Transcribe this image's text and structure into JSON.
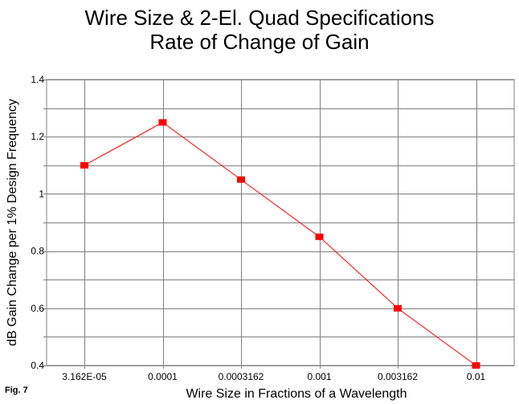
{
  "chart_data": {
    "type": "line",
    "title": "Wire Size & 2-El. Quad Specifications",
    "subtitle": "Rate of Change of Gain",
    "xlabel": "Wire Size in Fractions of a Wavelength",
    "ylabel": "dB Gain Change per 1% Design Frequency",
    "categories": [
      "3.162E-05",
      "0.0001",
      "0.0003162",
      "0.001",
      "0.003162",
      "0.01"
    ],
    "series": [
      {
        "values": [
          1.1,
          1.25,
          1.05,
          0.85,
          0.6,
          0.4
        ]
      }
    ],
    "ylim": [
      0.4,
      1.4
    ],
    "yticks": [
      "0.4",
      "0.6",
      "0.8",
      "1",
      "1.2",
      "1.4"
    ],
    "grid": true,
    "colors": {
      "line": "#ff0000",
      "marker": "#ff0000",
      "grid": "#808080"
    }
  },
  "figure_label": "Fig. 7"
}
